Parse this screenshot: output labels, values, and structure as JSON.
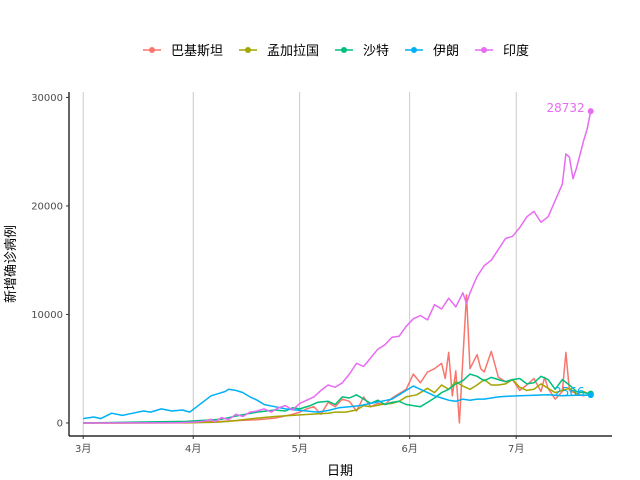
{
  "chart_data": {
    "type": "line",
    "xlabel": "日期",
    "ylabel": "新增确诊病例",
    "x_ticks": [
      "3月",
      "4月",
      "5月",
      "6月",
      "7月"
    ],
    "y_ticks": [
      0,
      10000,
      20000,
      30000
    ],
    "ylim": [
      -1200,
      30500
    ],
    "grid": "vertical major lines only",
    "legend_position": "top",
    "series": [
      {
        "name": "巴基斯坦",
        "color": "#F8766D",
        "end_label": "",
        "points": [
          [
            1,
            0
          ],
          [
            10,
            0
          ],
          [
            20,
            15
          ],
          [
            30,
            60
          ],
          [
            40,
            150
          ],
          [
            50,
            300
          ],
          [
            55,
            450
          ],
          [
            60,
            800
          ],
          [
            62,
            1000
          ],
          [
            64,
            1300
          ],
          [
            66,
            1500
          ],
          [
            68,
            800
          ],
          [
            70,
            1900
          ],
          [
            72,
            1500
          ],
          [
            74,
            2200
          ],
          [
            76,
            2000
          ],
          [
            78,
            1100
          ],
          [
            80,
            2400
          ],
          [
            82,
            1500
          ],
          [
            84,
            1800
          ],
          [
            86,
            1700
          ],
          [
            88,
            2300
          ],
          [
            90,
            2700
          ],
          [
            92,
            3100
          ],
          [
            94,
            4500
          ],
          [
            96,
            3700
          ],
          [
            98,
            4700
          ],
          [
            100,
            5000
          ],
          [
            102,
            5500
          ],
          [
            103,
            4100
          ],
          [
            104,
            6500
          ],
          [
            105,
            2500
          ],
          [
            106,
            4800
          ],
          [
            107,
            0
          ],
          [
            108,
            6000
          ],
          [
            109,
            11800
          ],
          [
            110,
            5000
          ],
          [
            112,
            6300
          ],
          [
            113,
            5000
          ],
          [
            114,
            4700
          ],
          [
            116,
            6600
          ],
          [
            118,
            4200
          ],
          [
            120,
            3800
          ],
          [
            122,
            4000
          ],
          [
            124,
            3000
          ],
          [
            126,
            3500
          ],
          [
            128,
            4100
          ],
          [
            130,
            2900
          ],
          [
            131,
            4200
          ],
          [
            132,
            3200
          ],
          [
            134,
            2200
          ],
          [
            136,
            2900
          ],
          [
            137,
            6500
          ],
          [
            138,
            3000
          ],
          [
            140,
            2700
          ],
          [
            142,
            2500
          ],
          [
            144,
            2700
          ]
        ]
      },
      {
        "name": "孟加拉国",
        "color": "#A3A500",
        "end_label": "",
        "points": [
          [
            1,
            0
          ],
          [
            30,
            10
          ],
          [
            38,
            60
          ],
          [
            42,
            150
          ],
          [
            46,
            300
          ],
          [
            50,
            450
          ],
          [
            55,
            600
          ],
          [
            60,
            700
          ],
          [
            65,
            800
          ],
          [
            70,
            900
          ],
          [
            72,
            1000
          ],
          [
            75,
            1000
          ],
          [
            78,
            1200
          ],
          [
            80,
            1600
          ],
          [
            82,
            1500
          ],
          [
            85,
            1700
          ],
          [
            88,
            1800
          ],
          [
            90,
            2000
          ],
          [
            92,
            2400
          ],
          [
            95,
            2600
          ],
          [
            98,
            3200
          ],
          [
            100,
            2800
          ],
          [
            102,
            3500
          ],
          [
            104,
            3100
          ],
          [
            106,
            3800
          ],
          [
            108,
            3400
          ],
          [
            110,
            3100
          ],
          [
            112,
            3500
          ],
          [
            114,
            4000
          ],
          [
            116,
            3500
          ],
          [
            118,
            3500
          ],
          [
            120,
            3600
          ],
          [
            122,
            4000
          ],
          [
            124,
            3300
          ],
          [
            126,
            3000
          ],
          [
            128,
            3100
          ],
          [
            130,
            3600
          ],
          [
            132,
            3200
          ],
          [
            134,
            2800
          ],
          [
            136,
            3000
          ],
          [
            138,
            3200
          ],
          [
            140,
            2700
          ],
          [
            142,
            2900
          ],
          [
            144,
            2600
          ]
        ]
      },
      {
        "name": "沙特",
        "color": "#00BF7D",
        "end_label": "",
        "points": [
          [
            1,
            0
          ],
          [
            20,
            100
          ],
          [
            30,
            150
          ],
          [
            40,
            350
          ],
          [
            45,
            700
          ],
          [
            50,
            1000
          ],
          [
            55,
            1200
          ],
          [
            58,
            1100
          ],
          [
            60,
            1400
          ],
          [
            62,
            1300
          ],
          [
            65,
            1600
          ],
          [
            67,
            1900
          ],
          [
            70,
            2000
          ],
          [
            72,
            1700
          ],
          [
            74,
            2400
          ],
          [
            76,
            2300
          ],
          [
            78,
            2600
          ],
          [
            80,
            2200
          ],
          [
            82,
            1800
          ],
          [
            84,
            2100
          ],
          [
            86,
            1700
          ],
          [
            88,
            1900
          ],
          [
            90,
            2000
          ],
          [
            92,
            1700
          ],
          [
            94,
            1600
          ],
          [
            96,
            1500
          ],
          [
            98,
            1900
          ],
          [
            100,
            2300
          ],
          [
            102,
            2800
          ],
          [
            104,
            3100
          ],
          [
            106,
            3600
          ],
          [
            108,
            3900
          ],
          [
            110,
            4500
          ],
          [
            112,
            4300
          ],
          [
            114,
            3900
          ],
          [
            116,
            4200
          ],
          [
            118,
            4000
          ],
          [
            120,
            3800
          ],
          [
            122,
            4000
          ],
          [
            124,
            4100
          ],
          [
            126,
            3600
          ],
          [
            128,
            3700
          ],
          [
            130,
            4300
          ],
          [
            132,
            4000
          ],
          [
            134,
            3100
          ],
          [
            136,
            4000
          ],
          [
            138,
            3500
          ],
          [
            140,
            2900
          ],
          [
            142,
            2800
          ],
          [
            144,
            2700
          ]
        ]
      },
      {
        "name": "伊朗",
        "color": "#00B0F6",
        "end_label": "2566",
        "points": [
          [
            1,
            400
          ],
          [
            4,
            550
          ],
          [
            6,
            400
          ],
          [
            9,
            900
          ],
          [
            12,
            700
          ],
          [
            15,
            900
          ],
          [
            18,
            1100
          ],
          [
            20,
            1000
          ],
          [
            23,
            1300
          ],
          [
            26,
            1100
          ],
          [
            29,
            1200
          ],
          [
            31,
            1000
          ],
          [
            33,
            1500
          ],
          [
            35,
            2000
          ],
          [
            37,
            2500
          ],
          [
            39,
            2700
          ],
          [
            41,
            2900
          ],
          [
            42,
            3100
          ],
          [
            44,
            3000
          ],
          [
            46,
            2800
          ],
          [
            48,
            2400
          ],
          [
            50,
            2100
          ],
          [
            52,
            1700
          ],
          [
            55,
            1500
          ],
          [
            58,
            1300
          ],
          [
            61,
            1200
          ],
          [
            64,
            1100
          ],
          [
            67,
            1000
          ],
          [
            70,
            1150
          ],
          [
            73,
            1400
          ],
          [
            76,
            1500
          ],
          [
            79,
            1600
          ],
          [
            82,
            1800
          ],
          [
            85,
            2000
          ],
          [
            88,
            2200
          ],
          [
            90,
            2600
          ],
          [
            92,
            3000
          ],
          [
            94,
            3400
          ],
          [
            96,
            3100
          ],
          [
            98,
            2800
          ],
          [
            100,
            2500
          ],
          [
            102,
            2300
          ],
          [
            104,
            2100
          ],
          [
            106,
            2000
          ],
          [
            108,
            2200
          ],
          [
            110,
            2100
          ],
          [
            112,
            2200
          ],
          [
            114,
            2200
          ],
          [
            116,
            2300
          ],
          [
            118,
            2400
          ],
          [
            120,
            2450
          ],
          [
            124,
            2500
          ],
          [
            128,
            2550
          ],
          [
            132,
            2600
          ],
          [
            136,
            2500
          ],
          [
            140,
            2550
          ],
          [
            144,
            2566
          ]
        ]
      },
      {
        "name": "印度",
        "color": "#E76BF3",
        "end_label": "28732",
        "points": [
          [
            1,
            0
          ],
          [
            20,
            10
          ],
          [
            28,
            30
          ],
          [
            32,
            80
          ],
          [
            35,
            150
          ],
          [
            37,
            350
          ],
          [
            38,
            100
          ],
          [
            40,
            500
          ],
          [
            42,
            300
          ],
          [
            44,
            800
          ],
          [
            46,
            600
          ],
          [
            48,
            1000
          ],
          [
            50,
            1100
          ],
          [
            52,
            1300
          ],
          [
            54,
            1000
          ],
          [
            56,
            1400
          ],
          [
            58,
            1600
          ],
          [
            60,
            1200
          ],
          [
            62,
            1800
          ],
          [
            64,
            2100
          ],
          [
            66,
            2400
          ],
          [
            68,
            3000
          ],
          [
            70,
            3500
          ],
          [
            72,
            3300
          ],
          [
            74,
            3700
          ],
          [
            76,
            4500
          ],
          [
            78,
            5500
          ],
          [
            80,
            5200
          ],
          [
            82,
            6000
          ],
          [
            84,
            6800
          ],
          [
            86,
            7200
          ],
          [
            88,
            7900
          ],
          [
            90,
            8000
          ],
          [
            92,
            8900
          ],
          [
            94,
            9600
          ],
          [
            96,
            9900
          ],
          [
            98,
            9500
          ],
          [
            100,
            10900
          ],
          [
            102,
            10500
          ],
          [
            104,
            11500
          ],
          [
            106,
            10700
          ],
          [
            108,
            12000
          ],
          [
            109,
            11000
          ],
          [
            110,
            12000
          ],
          [
            112,
            13500
          ],
          [
            114,
            14500
          ],
          [
            116,
            15000
          ],
          [
            118,
            16000
          ],
          [
            120,
            17000
          ],
          [
            122,
            17200
          ],
          [
            124,
            18000
          ],
          [
            126,
            19000
          ],
          [
            128,
            19500
          ],
          [
            130,
            18500
          ],
          [
            132,
            19000
          ],
          [
            134,
            20500
          ],
          [
            136,
            22000
          ],
          [
            137,
            24800
          ],
          [
            138,
            24500
          ],
          [
            139,
            22500
          ],
          [
            140,
            23500
          ],
          [
            142,
            26000
          ],
          [
            143,
            27100
          ],
          [
            144,
            28732
          ]
        ]
      }
    ]
  }
}
